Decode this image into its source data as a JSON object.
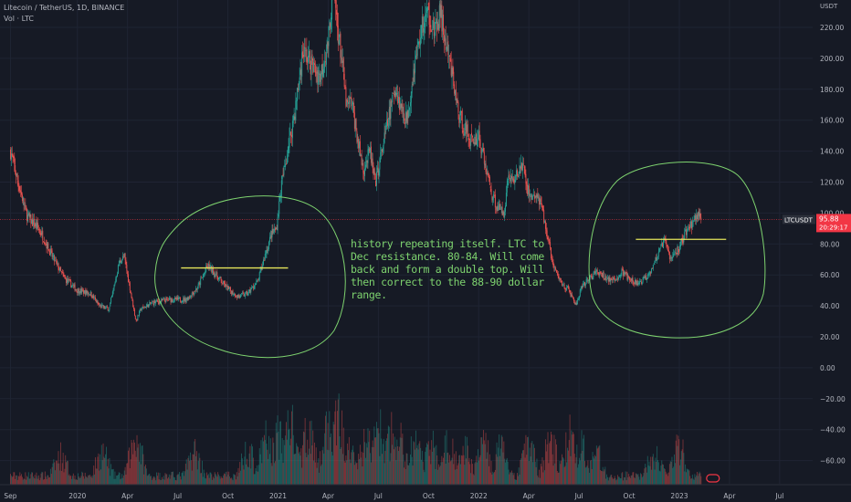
{
  "header": {
    "title": "Litecoin / TetherUS, 1D, BINANCE",
    "indicator": "Vol · LTC",
    "unit": "USDT"
  },
  "annotation": {
    "text": "history repeating itself. LTC to Dec resistance. 80-84. Will come back and form a double top. Will then correct to the 88-90 dollar range."
  },
  "price_tag": {
    "symbol": "LTCUSDT",
    "price": "95.88",
    "countdown": "20:29:17"
  },
  "colors": {
    "background": "#161a25",
    "grid": "#1f2433",
    "text": "#b2b5be",
    "up": "#26a69a",
    "down": "#ef5350",
    "annotation": "#7ed36f",
    "level_line": "#e5e55a",
    "price_line": "#f23645"
  },
  "chart_data": {
    "type": "candlestick",
    "y_axis": {
      "min": -70,
      "max": 240,
      "ticks": [
        "220.00",
        "200.00",
        "180.00",
        "160.00",
        "140.00",
        "120.00",
        "100.00",
        "80.00",
        "60.00",
        "40.00",
        "20.00",
        "0.00",
        "−20.00",
        "−40.00",
        "−60.00"
      ],
      "tick_values": [
        220,
        200,
        180,
        160,
        140,
        120,
        100,
        80,
        60,
        40,
        20,
        0,
        -20,
        -40,
        -60
      ]
    },
    "x_axis": {
      "ticks": [
        "Sep",
        "2020",
        "Apr",
        "Jul",
        "Oct",
        "2021",
        "Apr",
        "Jul",
        "Oct",
        "2022",
        "Apr",
        "Jul",
        "Oct",
        "2023",
        "Apr",
        "Jul"
      ],
      "tick_months": [
        0,
        4,
        7,
        10,
        13,
        16,
        19,
        22,
        25,
        28,
        31,
        34,
        37,
        40,
        43,
        46
      ],
      "start_month": -0.3,
      "end_month": 47.1
    },
    "price_path": [
      [
        0.0,
        140
      ],
      [
        0.5,
        118
      ],
      [
        1.0,
        98
      ],
      [
        1.8,
        88
      ],
      [
        2.5,
        72
      ],
      [
        3.2,
        58
      ],
      [
        4.0,
        50
      ],
      [
        4.8,
        48
      ],
      [
        5.3,
        40
      ],
      [
        5.9,
        38
      ],
      [
        6.5,
        68
      ],
      [
        6.8,
        72
      ],
      [
        7.2,
        48
      ],
      [
        7.5,
        30
      ],
      [
        7.8,
        38
      ],
      [
        8.5,
        42
      ],
      [
        9.5,
        44
      ],
      [
        10.5,
        44
      ],
      [
        11.2,
        52
      ],
      [
        11.8,
        66
      ],
      [
        12.3,
        60
      ],
      [
        12.9,
        52
      ],
      [
        13.6,
        46
      ],
      [
        14.2,
        48
      ],
      [
        14.8,
        56
      ],
      [
        15.2,
        72
      ],
      [
        15.6,
        86
      ],
      [
        15.9,
        90
      ],
      [
        16.2,
        118
      ],
      [
        16.7,
        148
      ],
      [
        17.0,
        165
      ],
      [
        17.5,
        205
      ],
      [
        18.0,
        196
      ],
      [
        18.5,
        188
      ],
      [
        19.0,
        210
      ],
      [
        19.3,
        250
      ],
      [
        19.5,
        225
      ],
      [
        19.8,
        200
      ],
      [
        20.1,
        168
      ],
      [
        20.4,
        172
      ],
      [
        20.8,
        145
      ],
      [
        21.1,
        128
      ],
      [
        21.5,
        140
      ],
      [
        21.8,
        118
      ],
      [
        22.2,
        140
      ],
      [
        22.6,
        160
      ],
      [
        23.0,
        182
      ],
      [
        23.3,
        170
      ],
      [
        23.7,
        160
      ],
      [
        24.1,
        192
      ],
      [
        24.6,
        220
      ],
      [
        25.0,
        230
      ],
      [
        25.4,
        215
      ],
      [
        25.7,
        230
      ],
      [
        26.0,
        210
      ],
      [
        26.4,
        190
      ],
      [
        26.8,
        164
      ],
      [
        27.2,
        154
      ],
      [
        27.6,
        146
      ],
      [
        28.0,
        150
      ],
      [
        28.4,
        130
      ],
      [
        28.8,
        112
      ],
      [
        29.1,
        104
      ],
      [
        29.5,
        100
      ],
      [
        29.8,
        125
      ],
      [
        30.1,
        120
      ],
      [
        30.6,
        132
      ],
      [
        31.0,
        112
      ],
      [
        31.5,
        110
      ],
      [
        31.8,
        102
      ],
      [
        32.2,
        80
      ],
      [
        32.5,
        64
      ],
      [
        33.0,
        54
      ],
      [
        33.4,
        50
      ],
      [
        33.8,
        40
      ],
      [
        34.1,
        50
      ],
      [
        34.6,
        58
      ],
      [
        35.1,
        62
      ],
      [
        35.6,
        58
      ],
      [
        36.1,
        56
      ],
      [
        36.6,
        62
      ],
      [
        37.1,
        56
      ],
      [
        37.6,
        54
      ],
      [
        38.1,
        60
      ],
      [
        38.6,
        70
      ],
      [
        39.1,
        82
      ],
      [
        39.5,
        70
      ],
      [
        40.0,
        78
      ],
      [
        40.4,
        88
      ],
      [
        40.8,
        94
      ],
      [
        41.1,
        100
      ],
      [
        41.3,
        96
      ]
    ],
    "volume_spikes": [
      [
        3.0,
        0.28
      ],
      [
        5.5,
        0.34
      ],
      [
        7.5,
        0.56
      ],
      [
        11.0,
        0.35
      ],
      [
        14.2,
        0.38
      ],
      [
        15.3,
        0.52
      ],
      [
        16.0,
        0.6
      ],
      [
        16.7,
        0.82
      ],
      [
        17.8,
        0.7
      ],
      [
        19.0,
        0.72
      ],
      [
        19.6,
        0.88
      ],
      [
        20.2,
        0.62
      ],
      [
        21.3,
        0.55
      ],
      [
        22.0,
        0.72
      ],
      [
        22.8,
        0.6
      ],
      [
        23.3,
        0.5
      ],
      [
        24.2,
        0.48
      ],
      [
        25.2,
        0.46
      ],
      [
        26.2,
        0.5
      ],
      [
        27.2,
        0.38
      ],
      [
        28.3,
        0.46
      ],
      [
        29.3,
        0.4
      ],
      [
        31.0,
        0.45
      ],
      [
        32.3,
        0.52
      ],
      [
        33.5,
        0.6
      ],
      [
        34.2,
        0.42
      ],
      [
        35.0,
        0.36
      ],
      [
        38.5,
        0.32
      ],
      [
        40.0,
        0.44
      ]
    ],
    "volume_max_value": 110,
    "resistance_levels": [
      {
        "from_month": 10.2,
        "to_month": 16.6,
        "price": 64.5
      },
      {
        "from_month": 37.4,
        "to_month": 42.8,
        "price": 83.0
      }
    ],
    "current_price": 95.88
  }
}
